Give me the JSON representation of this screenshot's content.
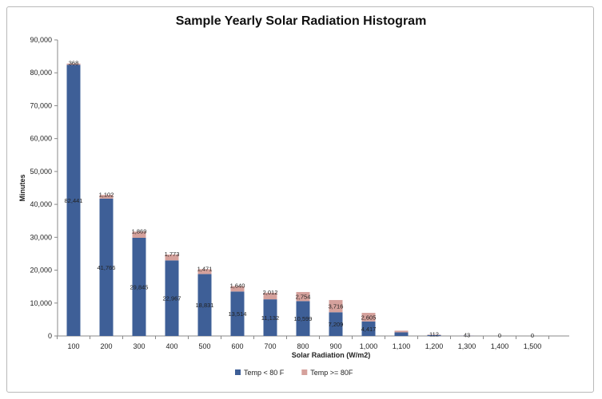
{
  "chart_data": {
    "type": "bar",
    "stacked": true,
    "title": "Sample Yearly Solar Radiation Histogram",
    "xlabel": "Solar Radiation (W/m2)",
    "ylabel": "Minutes",
    "ylim": [
      0,
      90000
    ],
    "yticks": [
      "0",
      "10,000",
      "20,000",
      "30,000",
      "40,000",
      "50,000",
      "60,000",
      "70,000",
      "80,000",
      "90,000"
    ],
    "categories": [
      "100",
      "200",
      "300",
      "400",
      "500",
      "600",
      "700",
      "800",
      "900",
      "1,000",
      "1,100",
      "1,200",
      "1,300",
      "1,400",
      "1,500"
    ],
    "series": [
      {
        "name": "Temp < 80 F",
        "color": "#3e5f97",
        "values": [
          82441,
          41766,
          29845,
          22967,
          18831,
          13514,
          11132,
          10599,
          7209,
          4417,
          1100,
          300,
          80,
          0,
          0
        ],
        "labels": [
          "82,441",
          "41,766",
          "29,845",
          "22,967",
          "18,831",
          "13,514",
          "11,132",
          "10,599",
          "7,209",
          "4,417",
          "",
          "",
          "",
          "",
          ""
        ]
      },
      {
        "name": "Temp >= 80F",
        "color": "#d5a19c",
        "values": [
          368,
          1102,
          1869,
          1773,
          1471,
          1640,
          2012,
          2754,
          3716,
          2605,
          500,
          112,
          43,
          0,
          0
        ],
        "labels": [
          "368",
          "1,102",
          "1,869",
          "1,773",
          "1,471",
          "1,640",
          "2,012",
          "2,754",
          "3,716",
          "2,605",
          "",
          "112",
          "43",
          "0",
          "0"
        ]
      }
    ],
    "legend_position": "bottom",
    "grid": false
  }
}
